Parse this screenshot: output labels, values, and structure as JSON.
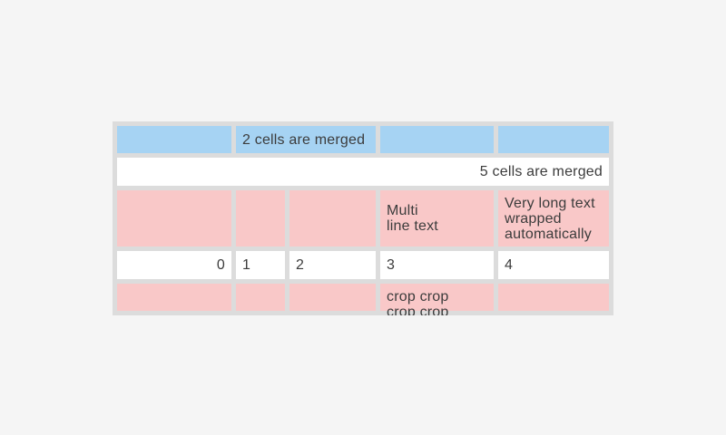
{
  "page": {
    "background_color": "#f5f5f5"
  },
  "colors": {
    "table_background": "#dcdcdc",
    "blue_cell": "#a6d3f3",
    "pink_cell": "#f9c8c8",
    "white_cell": "#ffffff",
    "text": "#3c3c3c"
  },
  "table": {
    "columns": 5,
    "rows": [
      {
        "style": "blue",
        "cells": [
          {
            "text": ""
          },
          {
            "text": "2 cells are merged",
            "merged_columns": 2
          },
          {
            "text": ""
          },
          {
            "text": ""
          }
        ]
      },
      {
        "style": "white",
        "cells": [
          {
            "text": "5 cells are merged",
            "merged_columns": 5,
            "align": "right"
          }
        ]
      },
      {
        "style": "pink",
        "cells": [
          {
            "text": ""
          },
          {
            "text": ""
          },
          {
            "text": ""
          },
          {
            "text": "Multi\nline text"
          },
          {
            "text": "Very long text\nwrapped\nautomatically"
          }
        ]
      },
      {
        "style": "white",
        "cells": [
          {
            "text": "0",
            "align": "right"
          },
          {
            "text": "1"
          },
          {
            "text": "2"
          },
          {
            "text": "3"
          },
          {
            "text": "4"
          }
        ]
      },
      {
        "style": "pink",
        "cells": [
          {
            "text": ""
          },
          {
            "text": ""
          },
          {
            "text": ""
          },
          {
            "text": "crop crop\ncrop crop",
            "clipped": true
          },
          {
            "text": ""
          }
        ]
      }
    ]
  }
}
